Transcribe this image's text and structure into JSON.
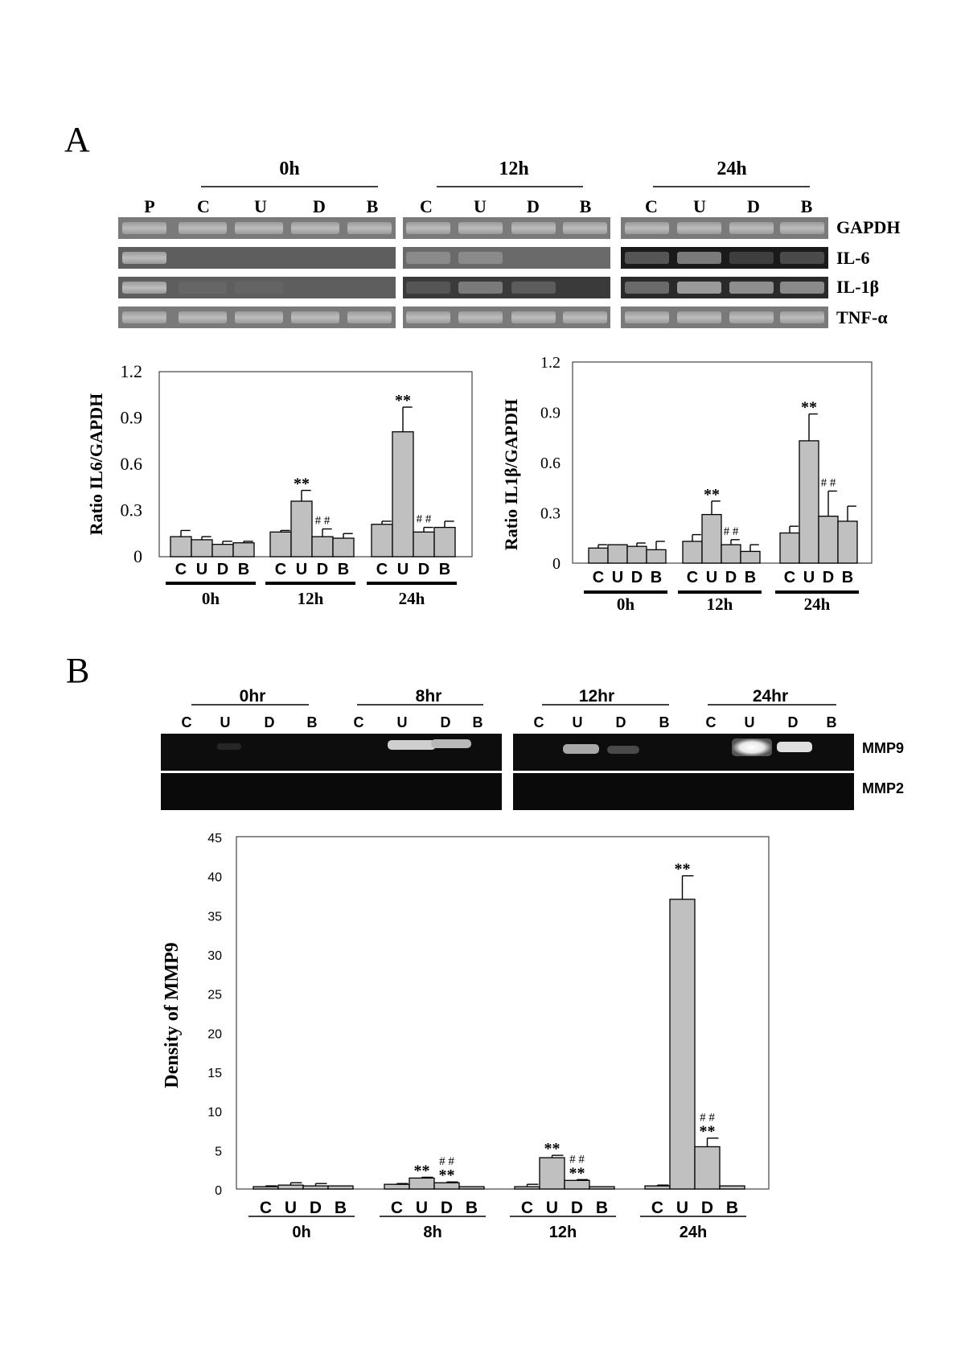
{
  "panels": {
    "A": {
      "label": "A",
      "gel": {
        "time_headers": [
          "0h",
          "12h",
          "24h"
        ],
        "lane_labels": [
          "P",
          "C",
          "U",
          "D",
          "B",
          "C",
          "U",
          "D",
          "B",
          "C",
          "U",
          "D",
          "B"
        ],
        "row_labels": [
          "GAPDH",
          "IL-6",
          "IL-1β",
          "TNF-α"
        ]
      }
    },
    "B": {
      "label": "B",
      "gel": {
        "time_headers": [
          "0hr",
          "8hr",
          "12hr",
          "24hr"
        ],
        "lane_labels": [
          "C",
          "U",
          "D",
          "B",
          "C",
          "U",
          "D",
          "B",
          "C",
          "U",
          "D",
          "B",
          "C",
          "U",
          "D",
          "B"
        ],
        "row_labels": [
          "MMP9",
          "MMP2"
        ]
      }
    }
  },
  "chart_data": [
    {
      "type": "bar",
      "panel": "A-left",
      "ylabel": "Ratio IL6/GAPDH",
      "ylim": [
        0,
        1.2
      ],
      "yticks": [
        "0",
        "0.3",
        "0.6",
        "0.9",
        "1.2"
      ],
      "group_labels": [
        "0h",
        "12h",
        "24h"
      ],
      "bar_labels": [
        "C",
        "U",
        "D",
        "B"
      ],
      "groups": [
        {
          "values": [
            0.13,
            0.11,
            0.08,
            0.09
          ],
          "errors": [
            0.04,
            0.02,
            0.02,
            0.01
          ],
          "marks": [
            "",
            "",
            "",
            ""
          ]
        },
        {
          "values": [
            0.16,
            0.36,
            0.13,
            0.12
          ],
          "errors": [
            0.01,
            0.07,
            0.05,
            0.03
          ],
          "marks": [
            "",
            "**",
            "##",
            ""
          ]
        },
        {
          "values": [
            0.21,
            0.81,
            0.16,
            0.19
          ],
          "errors": [
            0.02,
            0.16,
            0.03,
            0.04
          ],
          "marks": [
            "",
            "**",
            "##",
            ""
          ]
        }
      ],
      "bar_color": "#c0c0c0"
    },
    {
      "type": "bar",
      "panel": "A-right",
      "ylabel": "Ratio IL1β/GAPDH",
      "ylim": [
        0,
        1.2
      ],
      "yticks": [
        "0",
        "0.3",
        "0.6",
        "0.9",
        "1.2"
      ],
      "group_labels": [
        "0h",
        "12h",
        "24h"
      ],
      "bar_labels": [
        "C",
        "U",
        "D",
        "B"
      ],
      "groups": [
        {
          "values": [
            0.09,
            0.11,
            0.1,
            0.08
          ],
          "errors": [
            0.02,
            0.0,
            0.02,
            0.05
          ],
          "marks": [
            "",
            "",
            "",
            ""
          ]
        },
        {
          "values": [
            0.13,
            0.29,
            0.11,
            0.07
          ],
          "errors": [
            0.04,
            0.08,
            0.03,
            0.04
          ],
          "marks": [
            "",
            "**",
            "##",
            ""
          ]
        },
        {
          "values": [
            0.18,
            0.73,
            0.28,
            0.25
          ],
          "errors": [
            0.04,
            0.16,
            0.15,
            0.09
          ],
          "marks": [
            "",
            "**",
            "##",
            ""
          ]
        }
      ],
      "bar_color": "#c0c0c0"
    },
    {
      "type": "bar",
      "panel": "B",
      "ylabel": "Density of MMP9",
      "ylim": [
        0,
        45
      ],
      "yticks": [
        "0",
        "5",
        "10",
        "15",
        "20",
        "25",
        "30",
        "35",
        "40",
        "45"
      ],
      "group_labels": [
        "0h",
        "8h",
        "12h",
        "24h"
      ],
      "bar_labels": [
        "C",
        "U",
        "D",
        "B"
      ],
      "groups": [
        {
          "values": [
            0.3,
            0.5,
            0.4,
            0.4
          ],
          "errors": [
            0.1,
            0.3,
            0.3,
            0.0
          ],
          "marks": [
            "",
            "",
            "",
            ""
          ]
        },
        {
          "values": [
            0.6,
            1.4,
            0.8,
            0.3
          ],
          "errors": [
            0.1,
            0.1,
            0.1,
            0.0
          ],
          "marks": [
            "",
            "**",
            "##\n**",
            ""
          ]
        },
        {
          "values": [
            0.3,
            4.0,
            1.1,
            0.3
          ],
          "errors": [
            0.3,
            0.3,
            0.1,
            0.0
          ],
          "marks": [
            "",
            "**",
            "##\n**",
            ""
          ]
        },
        {
          "values": [
            0.4,
            37.0,
            5.4,
            0.4
          ],
          "errors": [
            0.1,
            3.0,
            1.1,
            0.0
          ],
          "marks": [
            "",
            "**",
            "##\n**",
            ""
          ]
        }
      ],
      "bar_color": "#c0c0c0"
    }
  ]
}
